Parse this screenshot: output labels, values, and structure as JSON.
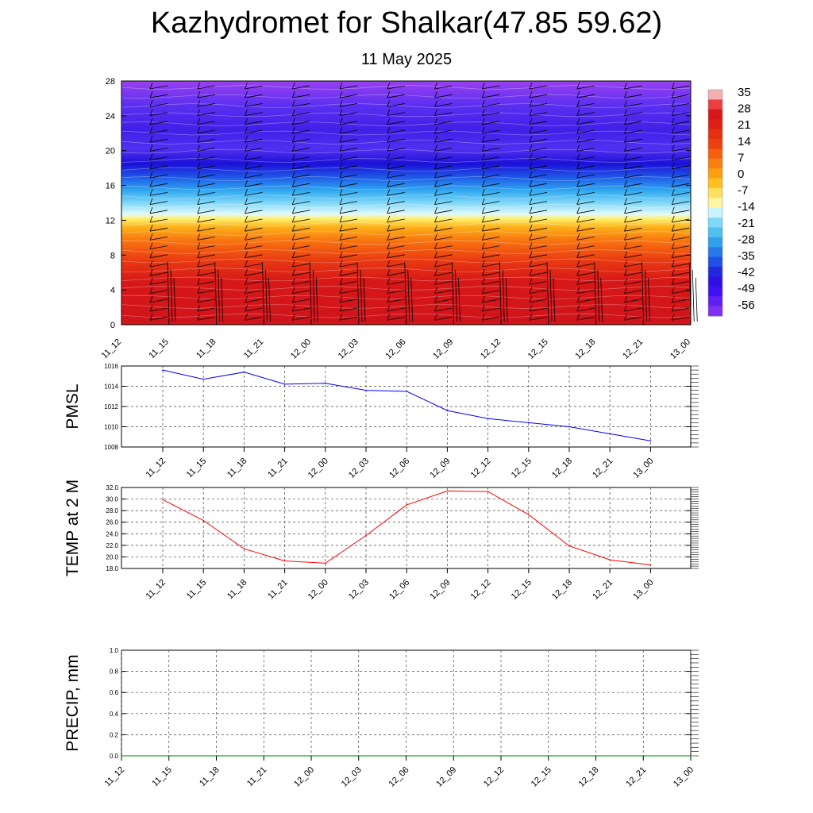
{
  "header": {
    "title": "Kazhydromet for Shalkar(47.85 59.62)",
    "subtitle": "11 May 2025"
  },
  "colorbar": {
    "labels": [
      "35",
      "28",
      "21",
      "14",
      "7",
      "0",
      "-7",
      "-14",
      "-21",
      "-28",
      "-35",
      "-42",
      "-49",
      "-56"
    ],
    "colors": [
      "#f0a0a0",
      "#d81818",
      "#e83010",
      "#f46010",
      "#fa9a10",
      "#fdc820",
      "#fff5a0",
      "#c0f0ff",
      "#60c8f5",
      "#2098e8",
      "#3060f0",
      "#3020e0",
      "#4010f0",
      "#8030f0"
    ]
  },
  "chart_data": [
    {
      "type": "heatmap",
      "name": "cross-section",
      "x": [
        "11_12",
        "11_15",
        "11_18",
        "11_21",
        "12_00",
        "12_03",
        "12_06",
        "12_09",
        "12_12",
        "12_15",
        "12_18",
        "12_21",
        "13_00"
      ],
      "y_ticks": [
        0,
        4,
        8,
        12,
        16,
        20,
        24,
        28
      ],
      "ylim": [
        0,
        28
      ],
      "description_colors": "temperature shading with wind barbs"
    },
    {
      "type": "line",
      "ylabel": "PMSL",
      "x": [
        "11_12",
        "11_15",
        "11_18",
        "11_21",
        "12_00",
        "12_03",
        "12_06",
        "12_09",
        "12_12",
        "12_15",
        "12_18",
        "12_21",
        "13_00"
      ],
      "values": [
        1015.6,
        1014.7,
        1015.4,
        1014.2,
        1014.3,
        1013.6,
        1013.5,
        1011.6,
        1010.8,
        1010.4,
        1010.0,
        1009.3,
        1008.6
      ],
      "ylim": [
        1008,
        1016
      ],
      "y_ticks": [
        "1008",
        "1010",
        "1012",
        "1014",
        "1016"
      ],
      "color": "#0000ff"
    },
    {
      "type": "line",
      "ylabel": "TEMP at 2 M",
      "x": [
        "11_12",
        "11_15",
        "11_18",
        "11_21",
        "12_00",
        "12_03",
        "12_06",
        "12_09",
        "12_12",
        "12_15",
        "12_18",
        "12_21",
        "13_00"
      ],
      "values": [
        29.9,
        26.3,
        21.4,
        19.3,
        18.9,
        23.7,
        29.0,
        31.4,
        31.3,
        27.3,
        21.9,
        19.5,
        18.6
      ],
      "ylim": [
        18,
        32
      ],
      "y_ticks": [
        "18.0",
        "20.0",
        "22.0",
        "24.0",
        "26.0",
        "28.0",
        "30.0",
        "32.0"
      ],
      "color": "#ff0000"
    },
    {
      "type": "line",
      "ylabel": "PRECIP, mm",
      "x": [
        "11_12",
        "11_15",
        "11_18",
        "11_21",
        "12_00",
        "12_03",
        "12_06",
        "12_09",
        "12_12",
        "12_15",
        "12_18",
        "12_21",
        "13_00"
      ],
      "values": [
        0,
        0,
        0,
        0,
        0,
        0,
        0,
        0,
        0,
        0,
        0,
        0,
        0
      ],
      "ylim": [
        0,
        1
      ],
      "y_ticks": [
        "0.0",
        "0.2",
        "0.4",
        "0.6",
        "0.8",
        "1.0"
      ],
      "color": "#008000"
    }
  ]
}
